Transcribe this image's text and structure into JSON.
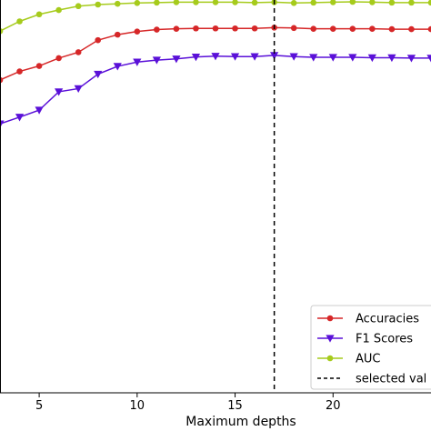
{
  "chart_data": {
    "type": "line",
    "xlabel": "Maximum depths",
    "ylabel": "",
    "xlim": [
      3,
      25
    ],
    "ylim": [
      0.0,
      1.0
    ],
    "xticks": [
      5,
      10,
      15,
      20
    ],
    "grid": false,
    "legend_position": "bottom-right",
    "selected_line": {
      "x": 17,
      "label": "selected val",
      "color": "#000000",
      "style": "dashed"
    },
    "series": [
      {
        "name": "Accuracies",
        "color": "#d62728",
        "marker": "circle",
        "x": [
          3,
          4,
          5,
          6,
          7,
          8,
          9,
          10,
          11,
          12,
          13,
          14,
          15,
          16,
          17,
          18,
          19,
          20,
          21,
          22,
          23,
          24,
          25
        ],
        "values": [
          0.8,
          0.822,
          0.836,
          0.856,
          0.871,
          0.902,
          0.916,
          0.924,
          0.929,
          0.931,
          0.932,
          0.932,
          0.932,
          0.932,
          0.934,
          0.933,
          0.931,
          0.931,
          0.931,
          0.931,
          0.93,
          0.93,
          0.93
        ]
      },
      {
        "name": "F1 Scores",
        "color": "#5a10d8",
        "marker": "triangle-down",
        "x": [
          3,
          4,
          5,
          6,
          7,
          8,
          9,
          10,
          11,
          12,
          13,
          14,
          15,
          16,
          17,
          18,
          19,
          20,
          21,
          22,
          23,
          24,
          25
        ],
        "values": [
          0.688,
          0.705,
          0.723,
          0.77,
          0.778,
          0.815,
          0.835,
          0.846,
          0.851,
          0.854,
          0.859,
          0.861,
          0.86,
          0.86,
          0.863,
          0.86,
          0.858,
          0.858,
          0.858,
          0.857,
          0.857,
          0.856,
          0.856
        ]
      },
      {
        "name": "AUC",
        "color": "#a6cb1c",
        "marker": "circle",
        "x": [
          3,
          4,
          5,
          6,
          7,
          8,
          9,
          10,
          11,
          12,
          13,
          14,
          15,
          16,
          17,
          18,
          19,
          20,
          21,
          22,
          23,
          24,
          25
        ],
        "values": [
          0.925,
          0.95,
          0.968,
          0.979,
          0.989,
          0.993,
          0.995,
          0.997,
          0.998,
          0.999,
          0.999,
          0.999,
          0.999,
          0.998,
          0.999,
          0.997,
          0.998,
          0.999,
          1.0,
          0.999,
          0.998,
          0.998,
          0.998
        ]
      }
    ]
  }
}
